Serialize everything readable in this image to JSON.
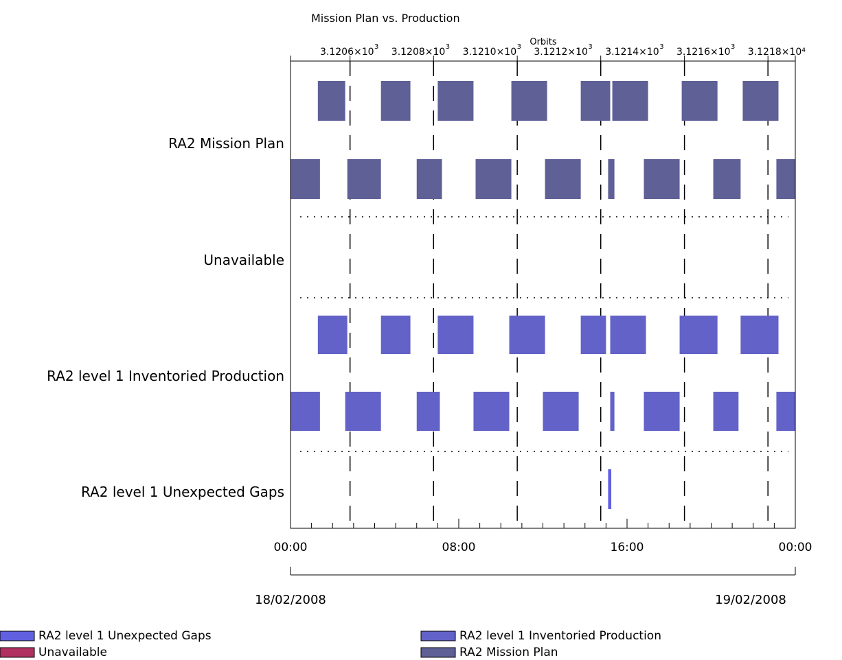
{
  "chart_data": {
    "type": "timeline",
    "title": "Mission Plan vs. Production",
    "top_axis": {
      "label": "Orbits",
      "ticks": [
        "3.1206×10",
        "3.1208×10",
        "3.1210×10",
        "3.1212×10",
        "3.1214×10",
        "3.1216×10",
        "3.1218×10⁴"
      ],
      "exponent_marks": [
        "3",
        "3",
        "3",
        "3",
        "3",
        "3"
      ]
    },
    "x_axis": {
      "unit": "hours",
      "range": [
        0,
        24
      ],
      "tick_labels": [
        {
          "hour": 0,
          "label": "00:00"
        },
        {
          "hour": 8,
          "label": "08:00"
        },
        {
          "hour": 16,
          "label": "16:00"
        },
        {
          "hour": 24,
          "label": "00:00"
        }
      ],
      "dates": [
        {
          "hour": 0,
          "label": "18/02/2008"
        },
        {
          "hour": 24,
          "label": "19/02/2008"
        }
      ]
    },
    "orbit_boundaries_hours": [
      2.83,
      6.8,
      10.78,
      14.75,
      18.73,
      22.7
    ],
    "rows": [
      {
        "label": "RA2 Mission Plan",
        "color": "#5f6096",
        "upper": [
          [
            1.3,
            2.6
          ],
          [
            4.3,
            5.7
          ],
          [
            7.0,
            8.7
          ],
          [
            10.5,
            12.2
          ],
          [
            13.8,
            15.2
          ],
          [
            15.3,
            17.0
          ],
          [
            18.6,
            20.3
          ],
          [
            21.5,
            23.2
          ]
        ],
        "lower": [
          [
            0.0,
            1.4
          ],
          [
            2.7,
            4.3
          ],
          [
            6.0,
            7.2
          ],
          [
            8.8,
            10.5
          ],
          [
            12.1,
            13.8
          ],
          [
            15.1,
            15.4
          ],
          [
            16.8,
            18.5
          ],
          [
            20.1,
            21.4
          ],
          [
            23.1,
            24.0
          ]
        ]
      },
      {
        "label": "Unavailable",
        "color": "#b03060",
        "upper": [],
        "lower": []
      },
      {
        "label": "RA2 level 1 Inventoried Production",
        "color": "#6262c8",
        "upper": [
          [
            1.3,
            2.7
          ],
          [
            4.3,
            5.7
          ],
          [
            7.0,
            8.7
          ],
          [
            10.4,
            12.1
          ],
          [
            13.8,
            15.0
          ],
          [
            15.2,
            16.9
          ],
          [
            18.5,
            20.3
          ],
          [
            21.4,
            23.2
          ]
        ],
        "lower": [
          [
            0.0,
            1.4
          ],
          [
            2.6,
            4.3
          ],
          [
            6.0,
            7.1
          ],
          [
            8.7,
            10.4
          ],
          [
            12.0,
            13.7
          ],
          [
            15.2,
            15.4
          ],
          [
            16.8,
            18.5
          ],
          [
            20.1,
            21.3
          ],
          [
            23.1,
            24.0
          ]
        ]
      },
      {
        "label": "RA2 level 1 Unexpected Gaps",
        "color": "#6060e0",
        "gaps": [
          [
            15.1,
            15.25
          ]
        ]
      }
    ],
    "legend": [
      {
        "label": "RA2 level 1 Unexpected Gaps",
        "color": "#6060e0"
      },
      {
        "label": "Unavailable",
        "color": "#b03060"
      },
      {
        "label": "RA2 level 1 Inventoried Production",
        "color": "#6262c8"
      },
      {
        "label": "RA2 Mission Plan",
        "color": "#5f6096"
      }
    ],
    "legend_placement": "bottom",
    "grid": true
  }
}
